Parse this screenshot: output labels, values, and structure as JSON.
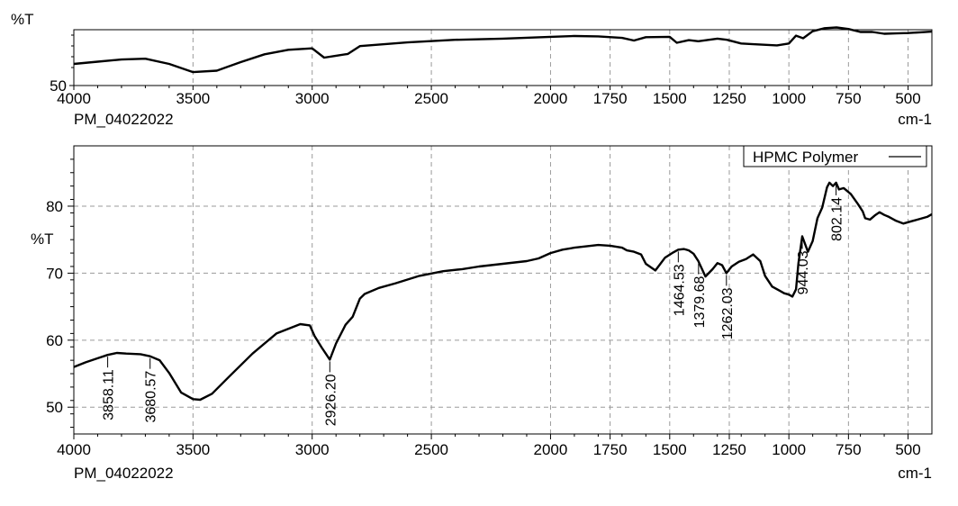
{
  "chart_data": [
    {
      "type": "line",
      "panel": "overview",
      "ylabel": "%T",
      "ytick_labels": [
        50
      ],
      "xlabel": "cm-1",
      "sample_label": "PM_04022022",
      "xlim": [
        4000,
        400
      ],
      "ylim": [
        50,
        65
      ],
      "xticks": [
        4000,
        3500,
        3000,
        2500,
        2000,
        1750,
        1500,
        1250,
        1000,
        750,
        500
      ],
      "series": [
        {
          "x": [
            4000,
            3900,
            3800,
            3700,
            3600,
            3500,
            3400,
            3300,
            3200,
            3100,
            3000,
            2950,
            2900,
            2850,
            2800,
            2600,
            2400,
            2200,
            2000,
            1900,
            1800,
            1700,
            1650,
            1600,
            1500,
            1470,
            1420,
            1380,
            1300,
            1260,
            1200,
            1150,
            1050,
            1000,
            970,
            940,
            900,
            850,
            800,
            750,
            700,
            650,
            600,
            550,
            500,
            450,
            400
          ],
          "y": [
            55.8,
            56.4,
            57.0,
            57.2,
            55.8,
            53.6,
            54.0,
            56.3,
            58.4,
            59.6,
            60.0,
            57.5,
            58.0,
            58.5,
            60.6,
            61.6,
            62.3,
            62.6,
            63.1,
            63.3,
            63.2,
            62.8,
            62.1,
            63.0,
            63.1,
            61.5,
            62.2,
            61.9,
            62.6,
            62.3,
            61.3,
            61.1,
            60.8,
            61.3,
            63.4,
            62.7,
            64.6,
            65.4,
            65.6,
            65.2,
            64.4,
            64.4,
            63.9,
            64.0,
            64.1,
            64.3,
            64.5
          ]
        }
      ]
    },
    {
      "type": "line",
      "panel": "main",
      "ylabel": "%T",
      "xlabel": "cm-1",
      "sample_label": "PM_04022022",
      "xlim": [
        4000,
        400
      ],
      "ylim": [
        46,
        89
      ],
      "xticks": [
        4000,
        3500,
        3000,
        2500,
        2000,
        1750,
        1500,
        1250,
        1000,
        750,
        500
      ],
      "yticks": [
        50,
        60,
        70,
        80
      ],
      "grid": true,
      "legend_position": "top-right",
      "series": [
        {
          "name": "HPMC Polymer",
          "x": [
            4000,
            3950,
            3900,
            3858,
            3820,
            3780,
            3720,
            3680,
            3640,
            3600,
            3550,
            3500,
            3470,
            3420,
            3350,
            3250,
            3150,
            3050,
            3010,
            2990,
            2960,
            2926,
            2900,
            2860,
            2830,
            2800,
            2780,
            2720,
            2650,
            2550,
            2450,
            2370,
            2300,
            2200,
            2100,
            2050,
            2000,
            1950,
            1900,
            1850,
            1800,
            1750,
            1700,
            1680,
            1650,
            1620,
            1600,
            1560,
            1520,
            1490,
            1464,
            1440,
            1420,
            1400,
            1380,
            1350,
            1320,
            1300,
            1280,
            1262,
            1240,
            1210,
            1180,
            1150,
            1120,
            1100,
            1070,
            1040,
            1020,
            1000,
            985,
            970,
            960,
            944,
            920,
            900,
            880,
            860,
            840,
            830,
            815,
            802,
            790,
            770,
            740,
            710,
            690,
            680,
            660,
            640,
            620,
            600,
            580,
            550,
            520,
            500,
            480,
            460,
            440,
            420,
            400
          ],
          "y": [
            56.0,
            56.7,
            57.3,
            57.8,
            58.1,
            58.0,
            57.9,
            57.6,
            57.0,
            55.1,
            52.2,
            51.2,
            51.1,
            52.0,
            54.5,
            58.0,
            61.0,
            62.4,
            62.2,
            60.6,
            58.9,
            57.1,
            59.5,
            62.3,
            63.5,
            66.2,
            66.9,
            67.8,
            68.5,
            69.6,
            70.3,
            70.6,
            71.0,
            71.4,
            71.8,
            72.2,
            73.0,
            73.5,
            73.8,
            74.0,
            74.2,
            74.1,
            73.8,
            73.4,
            73.2,
            72.8,
            71.4,
            70.4,
            72.3,
            73.0,
            73.5,
            73.6,
            73.4,
            72.9,
            71.8,
            69.5,
            70.6,
            71.5,
            71.2,
            70.0,
            71.0,
            71.7,
            72.1,
            72.8,
            71.8,
            69.6,
            68.0,
            67.4,
            67.0,
            66.8,
            66.5,
            67.6,
            71.5,
            75.5,
            73.2,
            74.8,
            78.2,
            79.8,
            82.8,
            83.5,
            83.0,
            83.5,
            82.5,
            82.7,
            81.8,
            80.3,
            79.2,
            78.2,
            78.0,
            78.6,
            79.1,
            78.7,
            78.4,
            77.8,
            77.4,
            77.6,
            77.8,
            78.0,
            78.2,
            78.4,
            78.8
          ],
          "peak_labels": [
            "3858.11",
            "3680.57",
            "2926.20",
            "1464.53",
            "1379.68",
            "1262.03",
            "944.03",
            "802.14"
          ],
          "peak_x": [
            3858,
            3680,
            2926,
            1464,
            1379,
            1262,
            944,
            802
          ]
        }
      ]
    }
  ]
}
